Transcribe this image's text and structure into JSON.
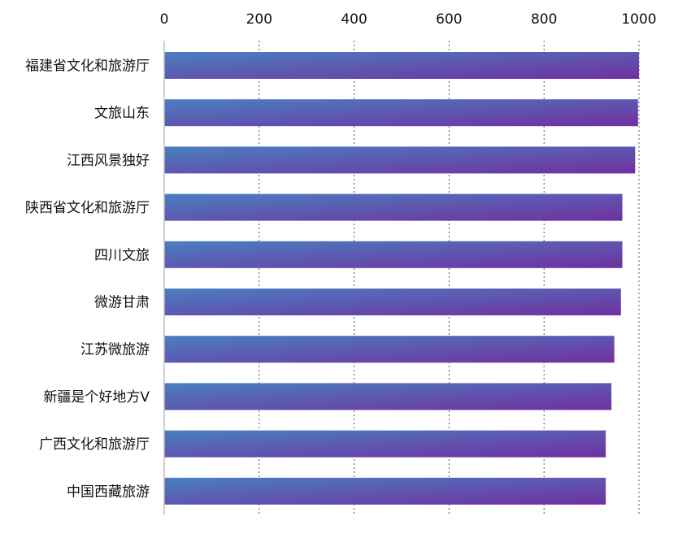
{
  "chart_data": {
    "type": "bar",
    "orientation": "horizontal",
    "categories": [
      "福建省文化和旅游厅",
      "文旅山东",
      "江西风景独好",
      "陕西省文化和旅游厅",
      "四川文旅",
      "微游甘肃",
      "江苏微旅游",
      "新疆是个好地方V",
      "广西文化和旅游厅",
      "中国西藏旅游"
    ],
    "values": [
      1000,
      998,
      992,
      965,
      965,
      962,
      948,
      942,
      930,
      930
    ],
    "xlim": [
      0,
      1000
    ],
    "xticks": [
      0,
      200,
      400,
      600,
      800,
      1000
    ],
    "x_axis_position": "top",
    "grid": "vertical dotted",
    "title": "",
    "xlabel": "",
    "ylabel": "",
    "colors": {
      "bar_start": "#4a7fc0",
      "bar_end": "#7030a0",
      "grid": "#555555",
      "axis": "#bfbfbf"
    }
  }
}
